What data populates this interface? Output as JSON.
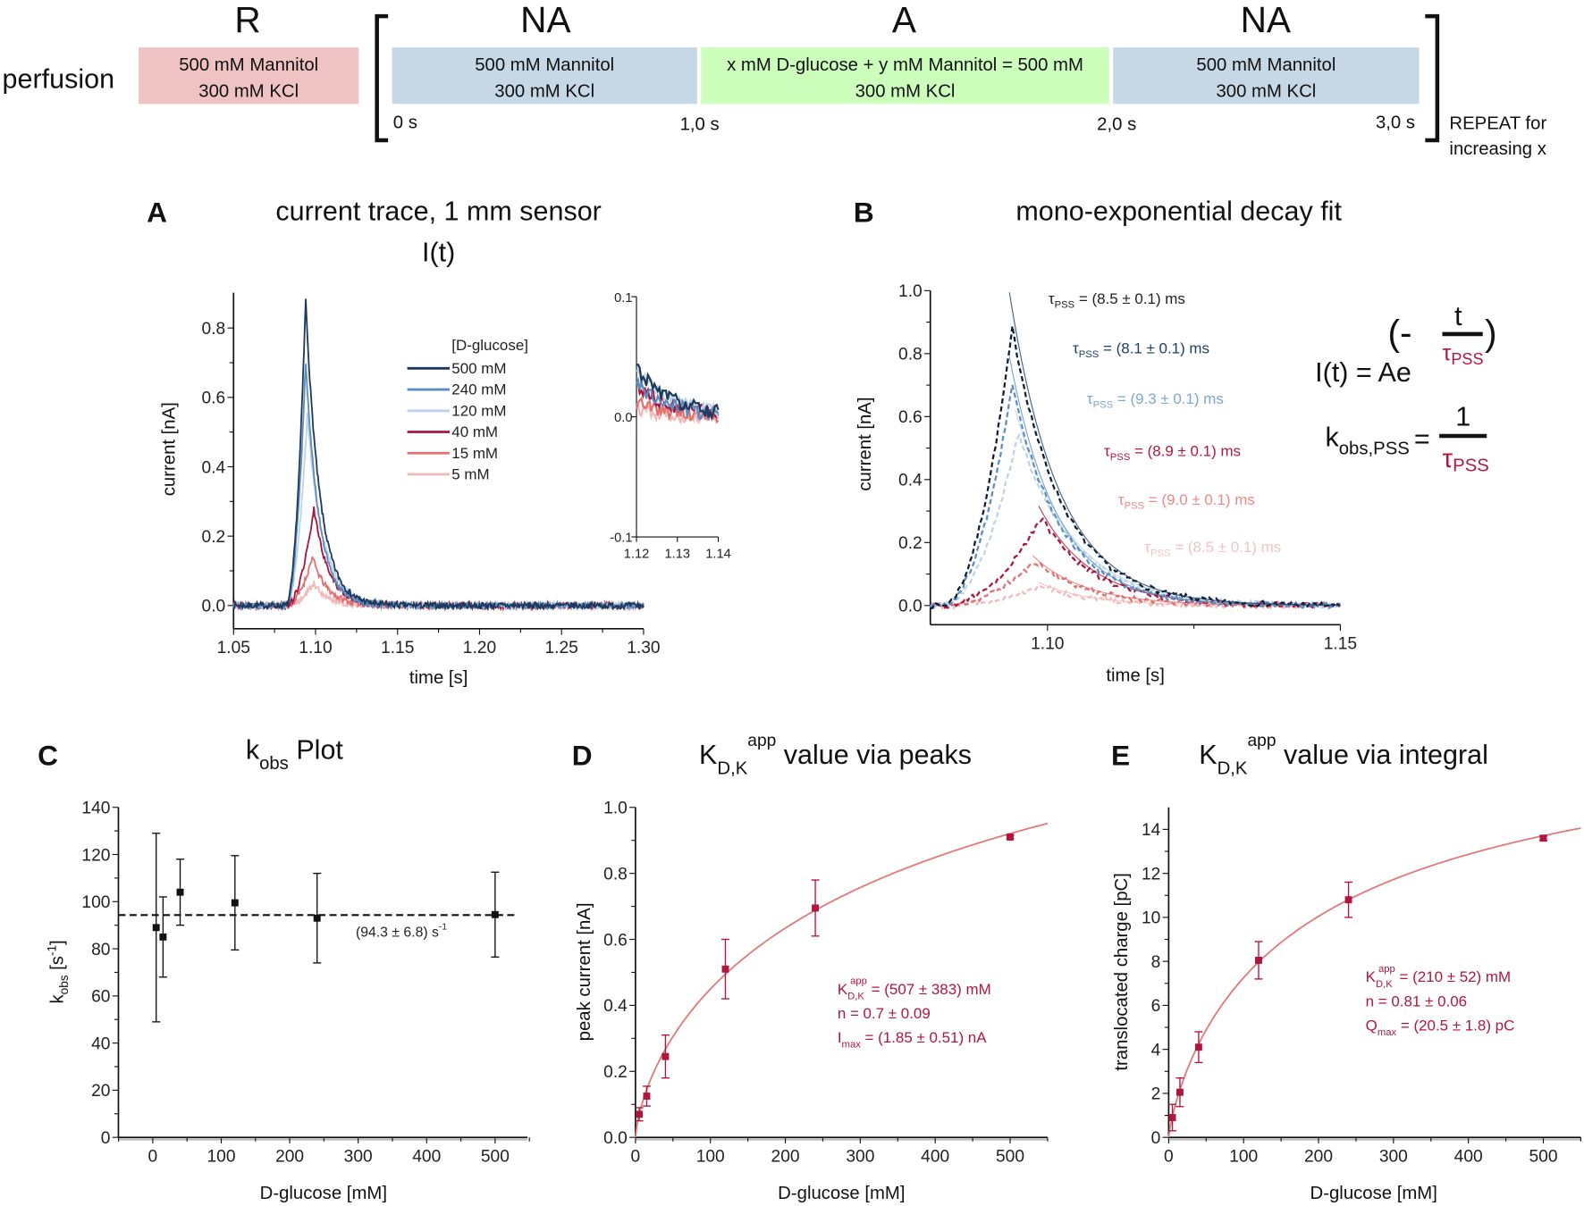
{
  "protocol": {
    "row_label": "perfusion",
    "phases": [
      {
        "label": "R",
        "line1": "500 mM Mannitol",
        "line2": "300 mM KCl",
        "color": "#efc3c3"
      },
      {
        "label": "NA",
        "line1": "500 mM Mannitol",
        "line2": "300 mM KCl",
        "color": "#c6d7e6"
      },
      {
        "label": "A",
        "line1": "x mM D-glucose + y mM Mannitol = 500 mM",
        "line2": "300 mM KCl",
        "color": "#ccffbb"
      },
      {
        "label": "NA",
        "line1": "500 mM Mannitol",
        "line2": "300 mM KCl",
        "color": "#c6d7e6"
      }
    ],
    "times": [
      "0 s",
      "1,0 s",
      "2,0 s",
      "3,0 s"
    ],
    "repeat_note": [
      "REPEAT for",
      "increasing x"
    ]
  },
  "chart_data": [
    {
      "panel": "A",
      "type": "line",
      "title": "current trace, 1 mm sensor",
      "subtitle": "I(t)",
      "xlabel": "time [s]",
      "ylabel": "current [nA]",
      "xlim": [
        1.05,
        1.3
      ],
      "ylim": [
        -0.067,
        0.9
      ],
      "xticks": [
        "1.05",
        "1.10",
        "1.15",
        "1.20",
        "1.25",
        "1.30"
      ],
      "yticks": [
        "0.0",
        "0.2",
        "0.4",
        "0.6",
        "0.8"
      ],
      "legend_title": "[D-glucose]",
      "legend_position": "center",
      "series": [
        {
          "name": "500 mM",
          "color": "#1d3a5c",
          "peak_time": 1.094,
          "peak_current": 0.88,
          "tau_ms": 8.5
        },
        {
          "name": "240 mM",
          "color": "#5d8dc0",
          "peak_time": 1.094,
          "peak_current": 0.7,
          "tau_ms": 8.1
        },
        {
          "name": "120 mM",
          "color": "#bcd3e8",
          "peak_time": 1.095,
          "peak_current": 0.55,
          "tau_ms": 9.3
        },
        {
          "name": "40 mM",
          "color": "#a8153d",
          "peak_time": 1.099,
          "peak_current": 0.28,
          "tau_ms": 8.9
        },
        {
          "name": "15 mM",
          "color": "#e07272",
          "peak_time": 1.098,
          "peak_current": 0.14,
          "tau_ms": 9.0
        },
        {
          "name": "5 mM",
          "color": "#f1baba",
          "peak_time": 1.099,
          "peak_current": 0.065,
          "tau_ms": 8.5
        }
      ],
      "inset": {
        "xlim": [
          1.12,
          1.14
        ],
        "ylim": [
          -0.1,
          0.1
        ],
        "xticks": [
          "1.12",
          "1.13",
          "1.14"
        ],
        "yticks": [
          "0.1",
          "0.0",
          "-0.1"
        ]
      }
    },
    {
      "panel": "B",
      "type": "line",
      "title": "mono-exponential decay fit",
      "xlabel": "time [s]",
      "ylabel": "current [nA]",
      "xlim": [
        1.08,
        1.15
      ],
      "ylim": [
        -0.06,
        1.0
      ],
      "xticks": [
        "1.10",
        "1.15"
      ],
      "yticks": [
        "0.0",
        "0.2",
        "0.4",
        "0.6",
        "0.8",
        "1.0"
      ],
      "fit_labels": [
        {
          "prefix": "τ",
          "sub": "PSS",
          "text": " = (8.5 ± 0.1) ms",
          "color": "#222222"
        },
        {
          "prefix": "τ",
          "sub": "PSS",
          "text": " = (8.1 ± 0.1) ms",
          "color": "#1f3f66"
        },
        {
          "prefix": "τ",
          "sub": "PSS",
          "text": " = (9.3 ± 0.1) ms",
          "color": "#7ea6cf"
        },
        {
          "prefix": "τ",
          "sub": "PSS",
          "text": " = (8.9 ± 0.1) ms",
          "color": "#b0173f"
        },
        {
          "prefix": "τ",
          "sub": "PSS",
          "text": " = (9.0 ± 0.1) ms",
          "color": "#e88a8a"
        },
        {
          "prefix": "τ",
          "sub": "PSS",
          "text": " = (8.5 ± 0.1) ms",
          "color": "#f2c4c4"
        }
      ],
      "formula": {
        "lhs": "I(t) = Ae",
        "open": "(-",
        "num": "t",
        "den": "τ",
        "den_sub": "PSS",
        "close": ")",
        "k": "k",
        "k_sub": "obs,PSS",
        "eq": "=",
        "one": "1",
        "accent": "#b0173f"
      }
    },
    {
      "panel": "C",
      "type": "scatter",
      "title": {
        "main": "k",
        "sub": "obs",
        "rest": " Plot"
      },
      "xlabel": "D-glucose [mM]",
      "ylabel": {
        "main": "k",
        "sub": "obs",
        "rest": " [s",
        "sup": "-1",
        "end": "]"
      },
      "xlim": [
        -50,
        550
      ],
      "ylim": [
        0,
        140
      ],
      "xticks": [
        "0",
        "100",
        "200",
        "300",
        "400",
        "500"
      ],
      "yticks": [
        "0",
        "20",
        "40",
        "60",
        "80",
        "100",
        "120",
        "140"
      ],
      "x": [
        5,
        15,
        40,
        120,
        240,
        500
      ],
      "y": [
        89,
        85,
        104,
        99.5,
        93,
        94.5
      ],
      "yerr": [
        40,
        17,
        14,
        20,
        19,
        18
      ],
      "mean_line": 94.3,
      "mean_label": {
        "text": "(94.3 ± 6.8) s",
        "sup": "-1"
      },
      "color": "#111111"
    },
    {
      "panel": "D",
      "type": "scatter",
      "title": {
        "main": "K",
        "sub": "D,K",
        "sup": "app",
        "rest": " value via peaks"
      },
      "xlabel": "D-glucose [mM]",
      "ylabel": "peak current [nA]",
      "xlim": [
        0,
        550
      ],
      "ylim": [
        0,
        1.0
      ],
      "xticks": [
        "0",
        "100",
        "200",
        "300",
        "400",
        "500"
      ],
      "yticks": [
        "0.0",
        "0.2",
        "0.4",
        "0.6",
        "0.8",
        "1.0"
      ],
      "x": [
        5,
        15,
        40,
        120,
        240,
        500
      ],
      "y": [
        0.07,
        0.125,
        0.245,
        0.51,
        0.695,
        0.91
      ],
      "yerr": [
        0.02,
        0.03,
        0.065,
        0.09,
        0.085,
        0.005
      ],
      "fit": {
        "type": "hill",
        "K": 507,
        "n": 0.7,
        "max": 1.85
      },
      "annotation": [
        {
          "main": "K",
          "sub": "D,K",
          "sup": "app",
          "rest": " = (507 ± 383) mM"
        },
        {
          "main": "n = 0.7 ± 0.09"
        },
        {
          "main": "I",
          "sub": "max",
          "rest": " = (1.85 ± 0.51) nA"
        }
      ],
      "color": "#b0173f",
      "fit_color": "#e07a7a"
    },
    {
      "panel": "E",
      "type": "scatter",
      "title": {
        "main": "K",
        "sub": "D,K",
        "sup": "app",
        "rest": " value via integral"
      },
      "xlabel": "D-glucose [mM]",
      "ylabel": "translocated charge [pC]",
      "xlim": [
        0,
        550
      ],
      "ylim": [
        0,
        15
      ],
      "xticks": [
        "0",
        "100",
        "200",
        "300",
        "400",
        "500"
      ],
      "yticks": [
        "0",
        "2",
        "4",
        "6",
        "8",
        "10",
        "12",
        "14"
      ],
      "x": [
        5,
        15,
        40,
        120,
        240,
        500
      ],
      "y": [
        0.9,
        2.05,
        4.1,
        8.05,
        10.8,
        13.6
      ],
      "yerr": [
        0.6,
        0.65,
        0.7,
        0.85,
        0.8,
        0.1
      ],
      "fit": {
        "type": "hill",
        "K": 210,
        "n": 0.81,
        "max": 20.5
      },
      "annotation": [
        {
          "main": "K",
          "sub": "D,K",
          "sup": "app",
          "rest": " = (210 ± 52) mM"
        },
        {
          "main": "n = 0.81 ± 0.06"
        },
        {
          "main": "Q",
          "sub": "max",
          "rest": " = (20.5 ± 1.8) pC"
        }
      ],
      "color": "#b0173f",
      "fit_color": "#e07a7a"
    }
  ]
}
